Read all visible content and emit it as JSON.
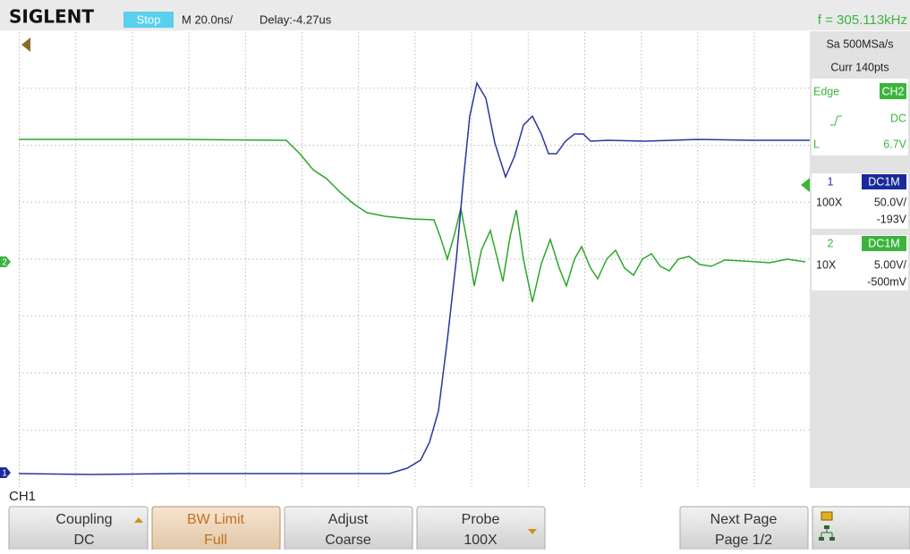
{
  "header": {
    "brand": "SIGLENT",
    "status": "Stop",
    "timebase": "M 20.0ns/",
    "delay": "Delay:-4.27us",
    "frequency": "f = 305.113kHz"
  },
  "side_panel": {
    "sample_rate": "Sa 500MSa/s",
    "memory": "Curr 140pts",
    "trigger": {
      "type": "Edge",
      "source": "CH2",
      "coupling": "DC",
      "level_prefix": "L",
      "level": "6.7V"
    },
    "channels": [
      {
        "number": "1",
        "coupling": "DC1M",
        "probe": "100X",
        "scale": "50.0V/",
        "offset": "-193V"
      },
      {
        "number": "2",
        "coupling": "DC1M",
        "probe": "10X",
        "scale": "5.00V/",
        "offset": "-500mV"
      }
    ]
  },
  "markers": {
    "ch1": "1",
    "ch2": "2"
  },
  "menu_title": "CH1",
  "menu": [
    {
      "label": "Coupling",
      "value": "DC"
    },
    {
      "label": "BW Limit",
      "value": "Full"
    },
    {
      "label": "Adjust",
      "value": "Coarse"
    },
    {
      "label": "Probe",
      "value": "100X"
    },
    {
      "label": "Next Page",
      "value": "Page 1/2"
    }
  ]
}
